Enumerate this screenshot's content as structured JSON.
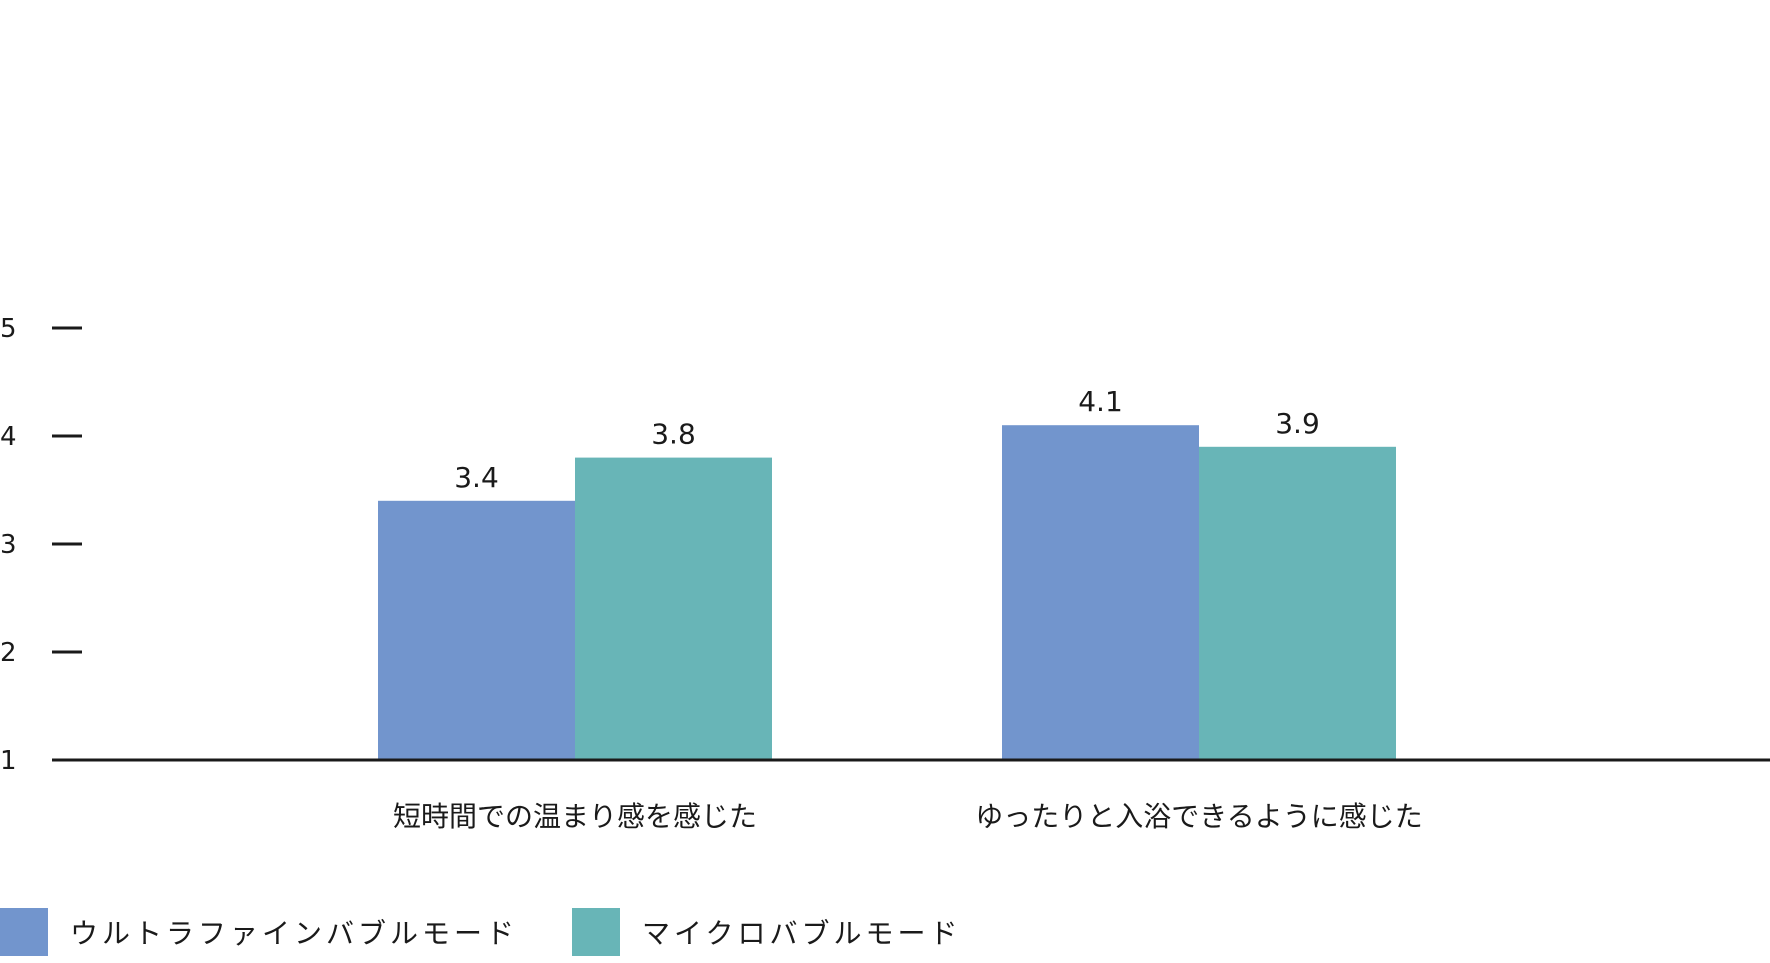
{
  "chart_data": {
    "type": "bar",
    "categories": [
      "短時間での温まり感を感じた",
      "ゆったりと入浴できるように感じた"
    ],
    "series": [
      {
        "name": "ウルトラファインバブルモード",
        "values": [
          3.4,
          4.1
        ],
        "color": "#7295cd"
      },
      {
        "name": "マイクロバブルモード",
        "values": [
          3.8,
          3.9
        ],
        "color": "#68b5b7"
      }
    ],
    "ylim": [
      1,
      5
    ],
    "yticks": [
      1,
      2,
      3,
      4,
      5
    ],
    "grid": false,
    "legend_position": "bottom-left",
    "data_labels": true
  }
}
